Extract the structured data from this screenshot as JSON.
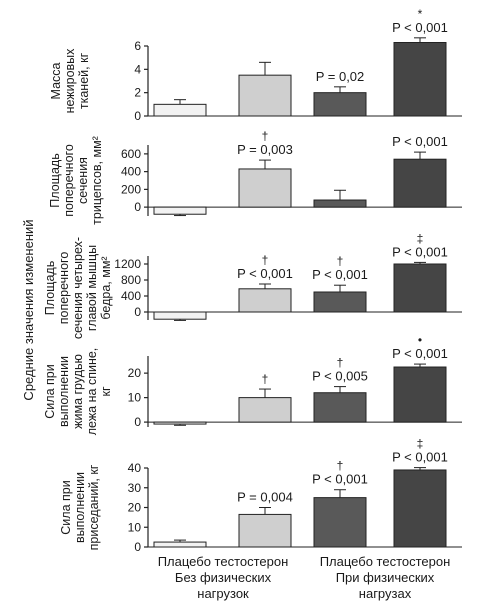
{
  "chart_data": {
    "type": "bar",
    "global_ylabel": "Средние значения изменений",
    "groups": [
      {
        "label_lines": [
          "Плацебо тестостерон",
          "Без физических",
          "нагрузок"
        ]
      },
      {
        "label_lines": [
          "Плацебо тестостерон",
          "При физических",
          "нагрузах"
        ]
      }
    ],
    "series": [
      {
        "name": "Плацебо",
        "exercise": "Без физических нагрузок",
        "color": "#f2f2f2"
      },
      {
        "name": "тестостерон",
        "exercise": "Без физических нагрузок",
        "color": "#cfcfcf"
      },
      {
        "name": "Плацебо",
        "exercise": "При физических нагрузах",
        "color": "#595959"
      },
      {
        "name": "тестостерон",
        "exercise": "При физических нагрузах",
        "color": "#454545"
      }
    ],
    "panels": [
      {
        "ylabel_lines": [
          "Масса",
          "нежировых",
          "тканей, кг"
        ],
        "ylim": [
          0,
          6
        ],
        "ticks": [
          "0",
          "2",
          "4",
          "6"
        ],
        "values": [
          1.0,
          3.5,
          2.0,
          6.3
        ],
        "errors": [
          0.4,
          1.1,
          0.5,
          0.4
        ],
        "symbols": [
          "",
          "",
          "",
          "*"
        ],
        "pvalues": [
          "",
          "",
          "P = 0,02",
          "P < 0,001"
        ]
      },
      {
        "ylabel_lines": [
          "Площадь",
          "поперечного",
          "сечения",
          "трицепсов, мм²"
        ],
        "ylim": [
          -100,
          700
        ],
        "ticks": [
          "0",
          "200",
          "400",
          "600"
        ],
        "values": [
          -80,
          430,
          80,
          540
        ],
        "errors": [
          15,
          100,
          110,
          80
        ],
        "symbols": [
          "",
          "†",
          "",
          ""
        ],
        "pvalues": [
          "",
          "P = 0,003",
          "",
          "P < 0,001"
        ]
      },
      {
        "ylabel_lines": [
          "Площадь",
          "поперечного",
          "сечения четырех-",
          "главой мышцы",
          "бедра, мм²"
        ],
        "ylim": [
          -200,
          1400
        ],
        "ticks": [
          "0",
          "400",
          "800",
          "1200"
        ],
        "values": [
          -180,
          580,
          500,
          1200
        ],
        "errors": [
          30,
          120,
          170,
          40
        ],
        "symbols": [
          "",
          "†",
          "†",
          "‡"
        ],
        "pvalues": [
          "",
          "P < 0,001",
          "P < 0,001",
          "P < 0,001"
        ]
      },
      {
        "ylabel_lines": [
          "Сила при",
          "выполнении",
          "жима грудью",
          "лежа на спине,",
          "кг"
        ],
        "ylim": [
          -2,
          27
        ],
        "ticks": [
          "0",
          "10",
          "20"
        ],
        "values": [
          -0.8,
          10,
          12,
          22.5
        ],
        "errors": [
          0.5,
          3.5,
          2.5,
          1.2
        ],
        "symbols": [
          "",
          "†",
          "†",
          "•"
        ],
        "pvalues": [
          "",
          "",
          "P < 0,005",
          "P < 0,001"
        ]
      },
      {
        "ylabel_lines": [
          "Сила при",
          "выполнении",
          "приседаний, кг"
        ],
        "ylim": [
          0,
          40
        ],
        "ticks": [
          "0",
          "10",
          "20",
          "30",
          "40"
        ],
        "values": [
          2.5,
          16.5,
          25,
          39
        ],
        "errors": [
          1.0,
          3.5,
          4.0,
          1.2
        ],
        "symbols": [
          "",
          "",
          "†",
          "‡"
        ],
        "pvalues": [
          "",
          "P = 0,004",
          "P < 0,001",
          "P < 0,001"
        ]
      }
    ]
  }
}
